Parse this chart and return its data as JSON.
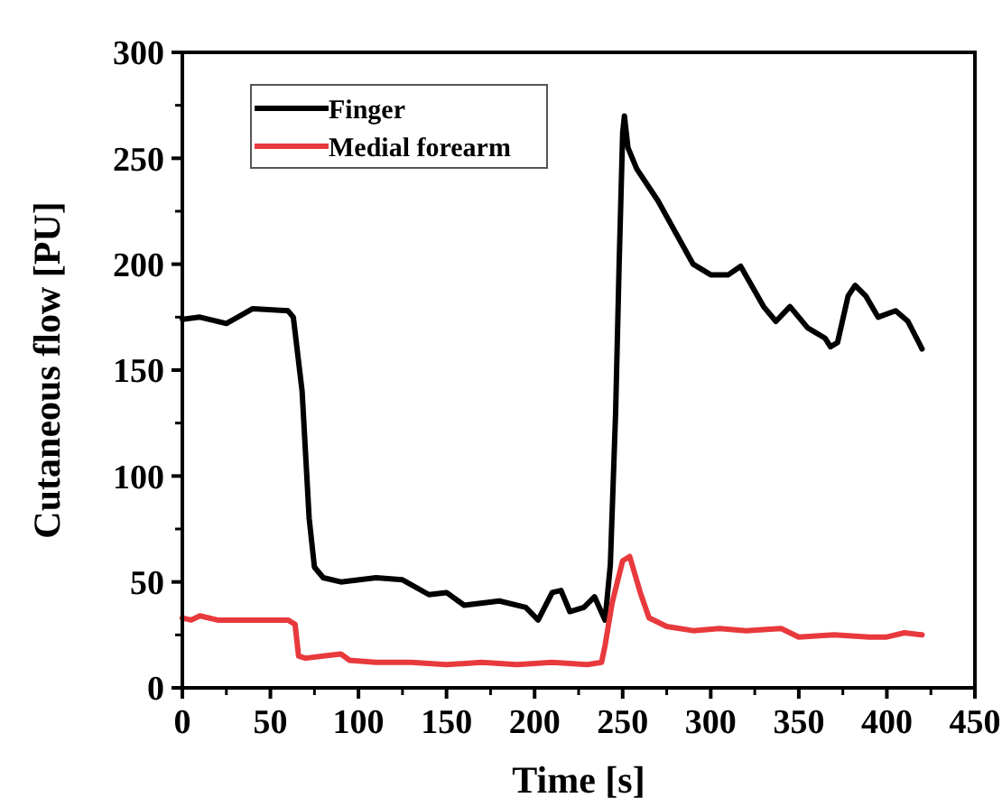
{
  "chart_data": {
    "type": "line",
    "xlabel": "Time [s]",
    "ylabel": "Cutaneous flow [PU]",
    "xlim": [
      0,
      450
    ],
    "xticks": [
      0,
      50,
      100,
      150,
      200,
      250,
      300,
      350,
      400,
      450
    ],
    "ylim": [
      0,
      300
    ],
    "yticks": [
      0,
      50,
      100,
      150,
      200,
      250,
      300
    ],
    "legend": "top left",
    "grid": false,
    "line_style": "solid",
    "marker": "none",
    "series": [
      {
        "name": "Finger",
        "color": "#000000",
        "x": [
          0,
          10,
          25,
          40,
          60,
          63,
          68,
          72,
          75,
          80,
          90,
          110,
          125,
          140,
          150,
          160,
          180,
          195,
          202,
          210,
          215,
          220,
          228,
          234,
          240,
          243,
          246,
          248,
          250,
          251,
          253,
          258,
          270,
          280,
          290,
          300,
          310,
          317,
          330,
          337,
          345,
          355,
          365,
          368,
          372,
          378,
          382,
          388,
          395,
          405,
          412,
          420
        ],
        "values": [
          174,
          175,
          172,
          179,
          178,
          175,
          140,
          80,
          57,
          52,
          50,
          52,
          51,
          44,
          45,
          39,
          41,
          38,
          32,
          45,
          46,
          36,
          38,
          43,
          32,
          58,
          130,
          200,
          262,
          270,
          255,
          245,
          230,
          215,
          200,
          195,
          195,
          199,
          180,
          173,
          180,
          170,
          165,
          161,
          163,
          185,
          190,
          185,
          175,
          178,
          173,
          160
        ]
      },
      {
        "name": "Medial forearm",
        "color": "#e8393c",
        "x": [
          0,
          5,
          10,
          20,
          40,
          60,
          64,
          66,
          70,
          80,
          90,
          95,
          110,
          130,
          150,
          170,
          190,
          210,
          230,
          238,
          240,
          244,
          250,
          254,
          260,
          265,
          275,
          290,
          305,
          320,
          340,
          350,
          370,
          390,
          400,
          410,
          420
        ],
        "values": [
          33,
          32,
          34,
          32,
          32,
          32,
          30,
          15,
          14,
          15,
          16,
          13,
          12,
          12,
          11,
          12,
          11,
          12,
          11,
          12,
          20,
          40,
          60,
          62,
          45,
          33,
          29,
          27,
          28,
          27,
          28,
          24,
          25,
          24,
          24,
          26,
          25
        ]
      }
    ]
  }
}
